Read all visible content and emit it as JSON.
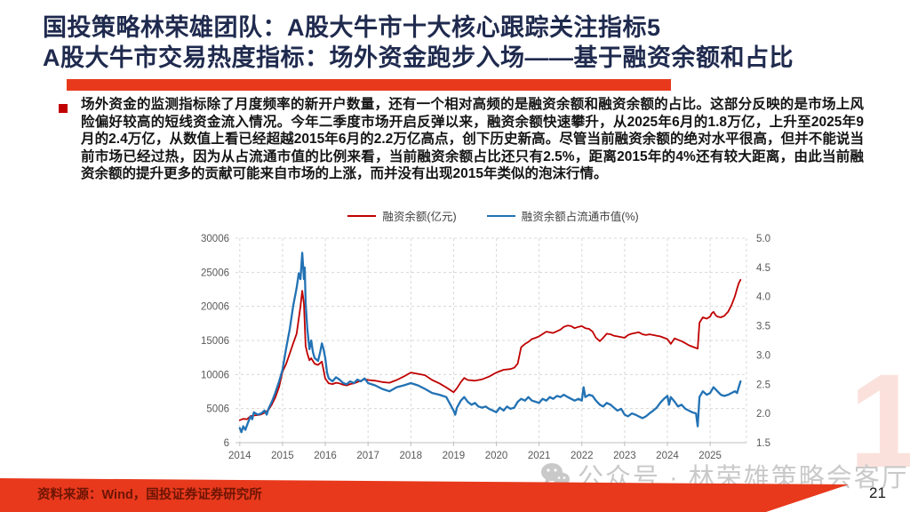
{
  "header": {
    "title_line1": "国投策略林荣雄团队：A股大牛市十大核心跟踪关注指标5",
    "title_line2": "A股大牛市交易热度指标：场外资金跑步入场——基于融资余额和占比",
    "title_color": "#1f2a4e",
    "accent_color": "#e8391c"
  },
  "bullet": {
    "text": "场外资金的监测指标除了月度频率的新开户数量，还有一个相对高频的是融资余额和融资余额的占比。这部分反映的是市场上风险偏好较高的短线资金流入情况。今年二季度市场开启反弹以来，融资余额快速攀升，从2025年6月的1.8万亿，上升至2025年9月的2.4万亿，从数值上看已经超越2015年6月的2.2万亿高点，创下历史新高。尽管当前融资余额的绝对水平很高，但并不能说当前市场已经过热，因为从占流通市值的比例来看，当前融资余额占比还只有2.5%，距离2015年的4%还有较大距离，由此当前融资余额的提升更多的贡献可能来自市场的上涨，而并没有出现2015年类似的泡沫行情。"
  },
  "chart_data": {
    "type": "line",
    "title": "",
    "grid": "dashed",
    "legend_position": "top-center",
    "x_axis": {
      "label": "",
      "min": 2013.9,
      "max": 2025.85,
      "ticks": [
        "2014",
        "2015",
        "2016",
        "2017",
        "2018",
        "2019",
        "2020",
        "2021",
        "2022",
        "2023",
        "2024",
        "2025"
      ],
      "tick_values": [
        2014,
        2015,
        2016,
        2017,
        2018,
        2019,
        2020,
        2021,
        2022,
        2023,
        2024,
        2025
      ]
    },
    "left_axis": {
      "label": "融资余额(亿元)",
      "min": 6,
      "max": 30006,
      "ticks": [
        "6",
        "5006",
        "10006",
        "15006",
        "20006",
        "25006",
        "30006"
      ],
      "tick_values": [
        6,
        5006,
        10006,
        15006,
        20006,
        25006,
        30006
      ]
    },
    "right_axis": {
      "label": "融资余额占流通市值(%)",
      "min": 1.5,
      "max": 5.0,
      "ticks": [
        "1.5",
        "2.0",
        "2.5",
        "3.0",
        "3.5",
        "4.0",
        "4.5",
        "5.0"
      ],
      "tick_values": [
        1.5,
        2.0,
        2.5,
        3.0,
        3.5,
        4.0,
        4.5,
        5.0
      ]
    },
    "series": [
      {
        "name": "融资余额(亿元)",
        "color": "#c00000",
        "axis": "left",
        "width": 1.8,
        "x": [
          2014.0,
          2014.08,
          2014.17,
          2014.25,
          2014.33,
          2014.42,
          2014.5,
          2014.58,
          2014.67,
          2014.75,
          2014.83,
          2014.92,
          2015.0,
          2015.08,
          2015.17,
          2015.25,
          2015.33,
          2015.42,
          2015.46,
          2015.5,
          2015.54,
          2015.58,
          2015.63,
          2015.67,
          2015.75,
          2015.83,
          2015.92,
          2016.0,
          2016.08,
          2016.17,
          2016.25,
          2016.33,
          2016.42,
          2016.5,
          2016.58,
          2016.67,
          2016.75,
          2016.83,
          2016.92,
          2017.0,
          2017.17,
          2017.33,
          2017.5,
          2017.67,
          2017.83,
          2018.0,
          2018.17,
          2018.33,
          2018.5,
          2018.67,
          2018.83,
          2019.0,
          2019.08,
          2019.17,
          2019.25,
          2019.33,
          2019.5,
          2019.67,
          2019.83,
          2020.0,
          2020.17,
          2020.33,
          2020.42,
          2020.5,
          2020.58,
          2020.67,
          2020.75,
          2020.83,
          2020.92,
          2021.0,
          2021.17,
          2021.33,
          2021.5,
          2021.58,
          2021.67,
          2021.75,
          2021.83,
          2021.92,
          2022.0,
          2022.08,
          2022.17,
          2022.25,
          2022.33,
          2022.42,
          2022.5,
          2022.58,
          2022.67,
          2022.75,
          2022.83,
          2022.92,
          2023.0,
          2023.08,
          2023.17,
          2023.25,
          2023.33,
          2023.42,
          2023.5,
          2023.58,
          2023.67,
          2023.75,
          2023.83,
          2023.92,
          2024.0,
          2024.08,
          2024.17,
          2024.25,
          2024.33,
          2024.42,
          2024.5,
          2024.58,
          2024.67,
          2024.71,
          2024.75,
          2024.79,
          2024.83,
          2024.92,
          2025.0,
          2025.04,
          2025.08,
          2025.13,
          2025.17,
          2025.25,
          2025.33,
          2025.42,
          2025.5,
          2025.58,
          2025.63,
          2025.67,
          2025.71
        ],
        "y": [
          3300,
          3500,
          3450,
          3900,
          4000,
          4050,
          4150,
          4400,
          4800,
          5600,
          6600,
          8200,
          10400,
          11500,
          13100,
          14600,
          16000,
          20000,
          22300,
          20400,
          14200,
          13100,
          12100,
          12400,
          11600,
          11400,
          11900,
          9400,
          8700,
          8600,
          8800,
          8700,
          8500,
          8400,
          8600,
          8700,
          8900,
          9100,
          9300,
          9200,
          9100,
          8900,
          8800,
          9200,
          9700,
          10300,
          10100,
          9900,
          9200,
          8700,
          8100,
          7400,
          8000,
          8900,
          9500,
          9200,
          9100,
          9300,
          9700,
          10300,
          10700,
          10800,
          11000,
          11600,
          14000,
          14500,
          14800,
          15200,
          15400,
          15600,
          16300,
          16100,
          16600,
          17000,
          17200,
          17100,
          16800,
          17000,
          17100,
          16800,
          16700,
          16300,
          15400,
          14900,
          15400,
          16000,
          15900,
          15700,
          15600,
          15500,
          15400,
          15800,
          16000,
          16100,
          16200,
          15900,
          15800,
          15900,
          15800,
          15700,
          15600,
          15400,
          15200,
          14500,
          15300,
          15100,
          14900,
          14600,
          14300,
          14100,
          13900,
          13800,
          17600,
          18000,
          18400,
          18200,
          18500,
          19000,
          19200,
          18700,
          18500,
          18400,
          18600,
          19200,
          20200,
          21500,
          22600,
          23400,
          23900
        ]
      },
      {
        "name": "融资余额占流通市值(%)",
        "color": "#2272b4",
        "axis": "right",
        "width": 2.3,
        "x": [
          2014.0,
          2014.04,
          2014.08,
          2014.13,
          2014.17,
          2014.25,
          2014.29,
          2014.33,
          2014.42,
          2014.5,
          2014.58,
          2014.63,
          2014.67,
          2014.75,
          2014.83,
          2014.92,
          2015.0,
          2015.08,
          2015.17,
          2015.25,
          2015.33,
          2015.38,
          2015.42,
          2015.46,
          2015.5,
          2015.52,
          2015.54,
          2015.58,
          2015.63,
          2015.67,
          2015.71,
          2015.75,
          2015.83,
          2015.88,
          2015.92,
          2015.96,
          2016.0,
          2016.04,
          2016.08,
          2016.17,
          2016.25,
          2016.33,
          2016.42,
          2016.5,
          2016.58,
          2016.67,
          2016.75,
          2016.83,
          2016.92,
          2017.0,
          2017.17,
          2017.33,
          2017.5,
          2017.67,
          2017.83,
          2018.0,
          2018.17,
          2018.33,
          2018.5,
          2018.67,
          2018.83,
          2019.0,
          2019.04,
          2019.08,
          2019.17,
          2019.25,
          2019.33,
          2019.42,
          2019.5,
          2019.58,
          2019.67,
          2019.75,
          2019.83,
          2019.92,
          2020.0,
          2020.08,
          2020.17,
          2020.25,
          2020.33,
          2020.42,
          2020.5,
          2020.58,
          2020.67,
          2020.75,
          2020.83,
          2020.92,
          2021.0,
          2021.08,
          2021.17,
          2021.25,
          2021.33,
          2021.42,
          2021.5,
          2021.58,
          2021.67,
          2021.75,
          2021.83,
          2021.92,
          2022.0,
          2022.04,
          2022.08,
          2022.17,
          2022.25,
          2022.33,
          2022.42,
          2022.5,
          2022.58,
          2022.67,
          2022.75,
          2022.83,
          2022.92,
          2023.0,
          2023.08,
          2023.17,
          2023.25,
          2023.33,
          2023.42,
          2023.5,
          2023.58,
          2023.67,
          2023.75,
          2023.83,
          2023.92,
          2024.0,
          2024.04,
          2024.08,
          2024.17,
          2024.25,
          2024.33,
          2024.42,
          2024.5,
          2024.58,
          2024.67,
          2024.71,
          2024.75,
          2024.83,
          2024.92,
          2025.0,
          2025.08,
          2025.17,
          2025.25,
          2025.33,
          2025.42,
          2025.5,
          2025.58,
          2025.63,
          2025.67,
          2025.71
        ],
        "y": [
          1.75,
          1.68,
          1.78,
          1.72,
          1.8,
          1.95,
          1.9,
          2.02,
          1.98,
          2.0,
          2.05,
          1.98,
          2.08,
          2.2,
          2.35,
          2.55,
          2.75,
          3.1,
          3.45,
          3.85,
          4.15,
          4.4,
          4.3,
          4.75,
          4.3,
          4.5,
          3.9,
          3.45,
          3.1,
          3.25,
          3.05,
          2.95,
          2.9,
          3.05,
          3.2,
          3.1,
          2.95,
          2.7,
          2.6,
          2.55,
          2.62,
          2.58,
          2.52,
          2.5,
          2.55,
          2.52,
          2.58,
          2.55,
          2.6,
          2.52,
          2.48,
          2.42,
          2.38,
          2.45,
          2.48,
          2.52,
          2.48,
          2.42,
          2.35,
          2.32,
          2.28,
          2.05,
          1.98,
          2.1,
          2.22,
          2.28,
          2.2,
          2.15,
          2.18,
          2.12,
          2.1,
          2.12,
          2.08,
          2.05,
          2.02,
          2.1,
          2.05,
          2.12,
          2.08,
          2.1,
          2.2,
          2.25,
          2.22,
          2.28,
          2.22,
          2.2,
          2.18,
          2.25,
          2.22,
          2.28,
          2.25,
          2.3,
          2.28,
          2.32,
          2.28,
          2.25,
          2.22,
          2.25,
          2.22,
          2.45,
          2.28,
          2.32,
          2.3,
          2.22,
          2.15,
          2.12,
          2.18,
          2.15,
          2.1,
          2.05,
          2.08,
          1.98,
          1.95,
          2.0,
          1.98,
          1.95,
          1.92,
          1.95,
          2.0,
          2.05,
          2.1,
          2.18,
          2.25,
          2.3,
          2.15,
          2.28,
          2.2,
          2.12,
          2.15,
          2.08,
          2.05,
          2.02,
          2.0,
          1.78,
          2.28,
          2.38,
          2.32,
          2.35,
          2.45,
          2.38,
          2.32,
          2.3,
          2.32,
          2.35,
          2.38,
          2.35,
          2.45,
          2.55
        ]
      }
    ]
  },
  "watermark": {
    "text": "公众号 · 林荣雄策略会客厅"
  },
  "decor": {
    "big_digit": "1"
  },
  "footer": {
    "source": "资料来源：Wind，国投证券证券研究所",
    "page": "21"
  }
}
